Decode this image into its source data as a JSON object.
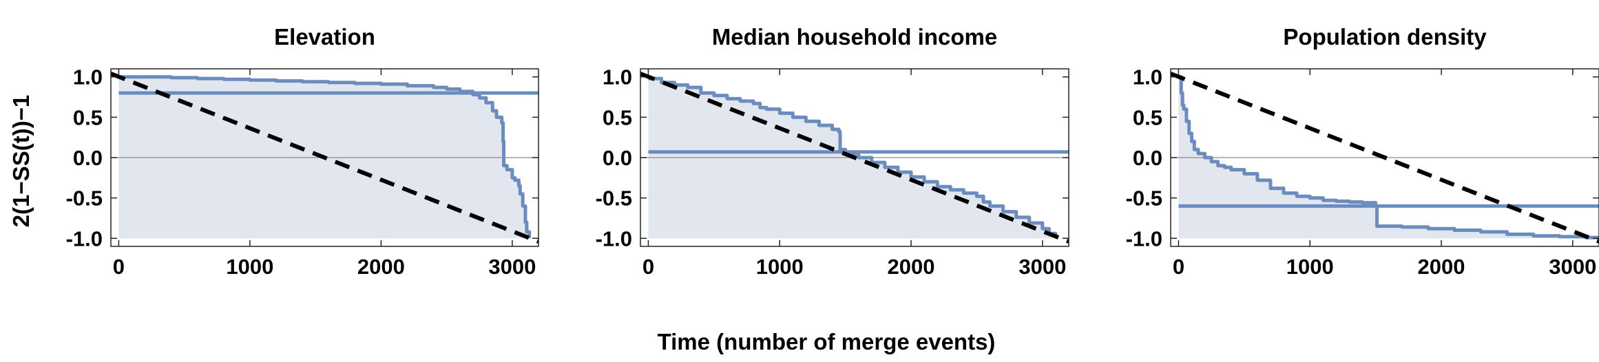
{
  "figure": {
    "ylabel": "2(1−SS(t))−1",
    "xlabel": "Time (number of merge events)"
  },
  "chart_data": [
    {
      "type": "line",
      "title": "Elevation",
      "xlim": [
        -60,
        3200
      ],
      "ylim": [
        -1.1,
        1.1
      ],
      "xticks": [
        0,
        1000,
        2000,
        3000
      ],
      "xtick_labels": [
        "0",
        "1000",
        "2000",
        "3000"
      ],
      "yticks": [
        1.0,
        0.5,
        0.0,
        -0.5,
        -1.0
      ],
      "ytick_labels": [
        "1.0",
        "0.5",
        "0.0",
        "-0.5",
        "-1.0"
      ],
      "series": [
        {
          "role": "empirical",
          "color": "#6b8cbf",
          "fill_color": "#e1e6ef",
          "x": [
            0,
            200,
            400,
            600,
            800,
            1000,
            1200,
            1400,
            1600,
            1800,
            2000,
            2200,
            2400,
            2500,
            2600,
            2700,
            2750,
            2800,
            2850,
            2880,
            2920,
            2930,
            2935,
            2960,
            3000,
            3020,
            3050,
            3060,
            3080,
            3100,
            3110,
            3130
          ],
          "y": [
            1.0,
            1.0,
            0.99,
            0.98,
            0.97,
            0.96,
            0.95,
            0.94,
            0.93,
            0.92,
            0.91,
            0.89,
            0.87,
            0.85,
            0.82,
            0.78,
            0.74,
            0.68,
            0.58,
            0.5,
            0.43,
            0.2,
            -0.1,
            -0.15,
            -0.25,
            -0.28,
            -0.35,
            -0.45,
            -0.6,
            -0.8,
            -0.92,
            -1.0
          ]
        },
        {
          "role": "reference-level",
          "color": "#6b8cbf",
          "x": [
            0,
            3200
          ],
          "y": [
            0.8,
            0.8
          ]
        },
        {
          "role": "reference-diagonal",
          "color": "#000000",
          "dashed": true,
          "x": [
            -60,
            3200
          ],
          "y": [
            1.04,
            -1.04
          ]
        }
      ]
    },
    {
      "type": "line",
      "title": "Median household income",
      "xlim": [
        -60,
        3200
      ],
      "ylim": [
        -1.1,
        1.1
      ],
      "xticks": [
        0,
        1000,
        2000,
        3000
      ],
      "xtick_labels": [
        "0",
        "1000",
        "2000",
        "3000"
      ],
      "yticks": [
        1.0,
        0.5,
        0.0,
        -0.5,
        -1.0
      ],
      "ytick_labels": [
        "1.0",
        "0.5",
        "0.0",
        "-0.5",
        "-1.0"
      ],
      "series": [
        {
          "role": "empirical",
          "color": "#6b8cbf",
          "fill_color": "#e1e6ef",
          "x": [
            0,
            100,
            200,
            300,
            400,
            500,
            600,
            700,
            800,
            850,
            900,
            1000,
            1100,
            1200,
            1300,
            1400,
            1450,
            1460,
            1500,
            1600,
            1700,
            1800,
            1900,
            2000,
            2100,
            2200,
            2300,
            2400,
            2500,
            2550,
            2600,
            2700,
            2800,
            2900,
            3000,
            3050,
            3100
          ],
          "y": [
            0.98,
            0.93,
            0.9,
            0.87,
            0.8,
            0.77,
            0.73,
            0.7,
            0.67,
            0.62,
            0.6,
            0.55,
            0.5,
            0.45,
            0.4,
            0.35,
            0.32,
            0.1,
            0.05,
            0.0,
            -0.06,
            -0.12,
            -0.18,
            -0.24,
            -0.3,
            -0.36,
            -0.4,
            -0.44,
            -0.48,
            -0.55,
            -0.6,
            -0.67,
            -0.74,
            -0.81,
            -0.88,
            -0.94,
            -0.99
          ]
        },
        {
          "role": "reference-level",
          "color": "#6b8cbf",
          "x": [
            0,
            3200
          ],
          "y": [
            0.07,
            0.07
          ]
        },
        {
          "role": "reference-diagonal",
          "color": "#000000",
          "dashed": true,
          "x": [
            -60,
            3200
          ],
          "y": [
            1.04,
            -1.04
          ]
        }
      ]
    },
    {
      "type": "line",
      "title": "Population density",
      "xlim": [
        -60,
        3200
      ],
      "ylim": [
        -1.1,
        1.1
      ],
      "xticks": [
        0,
        1000,
        2000,
        3000
      ],
      "xtick_labels": [
        "0",
        "1000",
        "2000",
        "3000"
      ],
      "yticks": [
        1.0,
        0.5,
        0.0,
        -0.5,
        -1.0
      ],
      "ytick_labels": [
        "1.0",
        "0.5",
        "0.0",
        "-0.5",
        "-1.0"
      ],
      "series": [
        {
          "role": "empirical",
          "color": "#6b8cbf",
          "fill_color": "#e1e6ef",
          "x": [
            0,
            20,
            30,
            40,
            60,
            80,
            100,
            120,
            150,
            200,
            250,
            300,
            350,
            400,
            500,
            600,
            700,
            800,
            900,
            1000,
            1100,
            1200,
            1300,
            1400,
            1500,
            1510,
            1700,
            1900,
            2100,
            2300,
            2500,
            2700,
            2900,
            3100,
            3200
          ],
          "y": [
            1.0,
            0.8,
            0.65,
            0.6,
            0.45,
            0.3,
            0.2,
            0.1,
            0.05,
            0.0,
            -0.05,
            -0.1,
            -0.12,
            -0.15,
            -0.2,
            -0.28,
            -0.38,
            -0.44,
            -0.48,
            -0.5,
            -0.53,
            -0.54,
            -0.55,
            -0.56,
            -0.6,
            -0.85,
            -0.86,
            -0.88,
            -0.9,
            -0.92,
            -0.95,
            -0.97,
            -0.98,
            -0.99,
            -0.99
          ]
        },
        {
          "role": "reference-level",
          "color": "#6b8cbf",
          "x": [
            0,
            3200
          ],
          "y": [
            -0.6,
            -0.6
          ]
        },
        {
          "role": "reference-diagonal",
          "color": "#000000",
          "dashed": true,
          "x": [
            -60,
            3200
          ],
          "y": [
            1.04,
            -1.04
          ]
        }
      ]
    }
  ]
}
